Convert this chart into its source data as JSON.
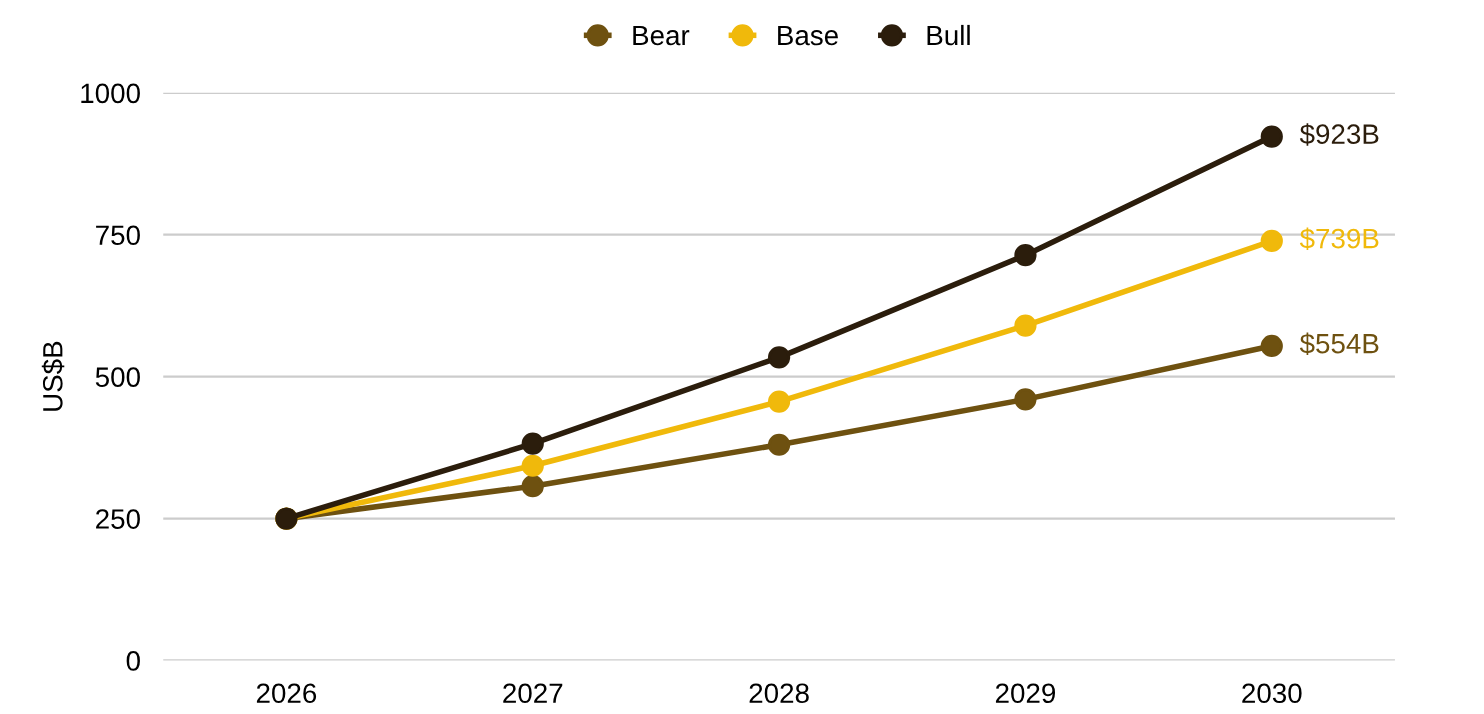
{
  "chart_data": {
    "type": "line",
    "ylabel": "US$B",
    "categories": [
      "2026",
      "2027",
      "2028",
      "2029",
      "2030"
    ],
    "series": [
      {
        "name": "Bear",
        "color": "#6e5110",
        "values": [
          250,
          307,
          380,
          460,
          554
        ],
        "value_labels": [
          null,
          null,
          null,
          null,
          "$554B"
        ]
      },
      {
        "name": "Base",
        "color": "#f0b90b",
        "values": [
          250,
          343,
          456,
          590,
          739
        ],
        "value_labels": [
          null,
          null,
          null,
          null,
          "$739B"
        ]
      },
      {
        "name": "Bull",
        "color": "#2b1d0c",
        "values": [
          250,
          382,
          534,
          714,
          923
        ],
        "value_labels": [
          null,
          null,
          null,
          null,
          "$923B"
        ]
      }
    ],
    "ylim": [
      0,
      1000
    ],
    "yticks": [
      0,
      250,
      500,
      750,
      1000
    ],
    "grid": "y",
    "legend": "top",
    "marker": "circle",
    "line_style": "solid"
  }
}
